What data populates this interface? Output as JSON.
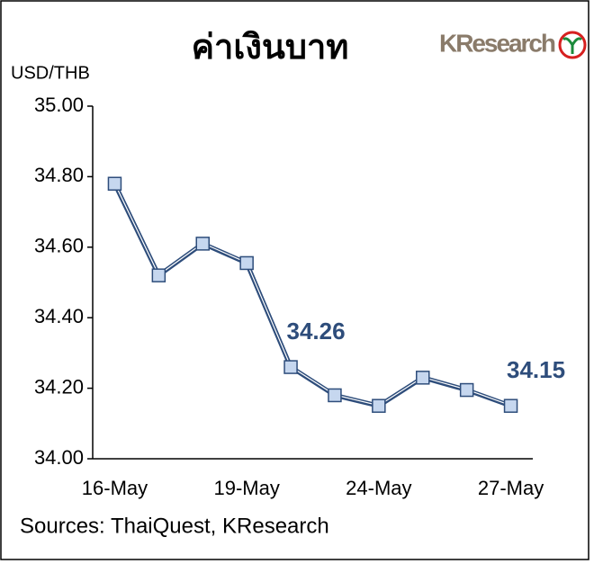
{
  "chart_data": {
    "type": "line",
    "title": "ค่าเงินบาท",
    "logo": "KResearch",
    "y_label": "USD/THB",
    "source": "Sources: ThaiQuest, KResearch",
    "categories": [
      "16-May",
      null,
      null,
      "19-May",
      null,
      null,
      "24-May",
      null,
      null,
      "27-May"
    ],
    "series": [
      {
        "name": "USD/THB",
        "color": "#2e4d7b",
        "marker_color": "#c6d7ef",
        "values": [
          34.78,
          34.52,
          34.61,
          34.555,
          34.26,
          34.18,
          34.15,
          34.23,
          34.195,
          34.15
        ]
      }
    ],
    "labeled_points": [
      4,
      9
    ],
    "ylim": [
      34.0,
      35.0
    ],
    "yticks": [
      {
        "value": 34.0,
        "label": "34.00"
      },
      {
        "value": 34.2,
        "label": "34.20"
      },
      {
        "value": 34.4,
        "label": "34.40"
      },
      {
        "value": 34.6,
        "label": "34.60"
      },
      {
        "value": 34.8,
        "label": "34.80"
      },
      {
        "value": 35.0,
        "label": "35.00"
      }
    ]
  }
}
